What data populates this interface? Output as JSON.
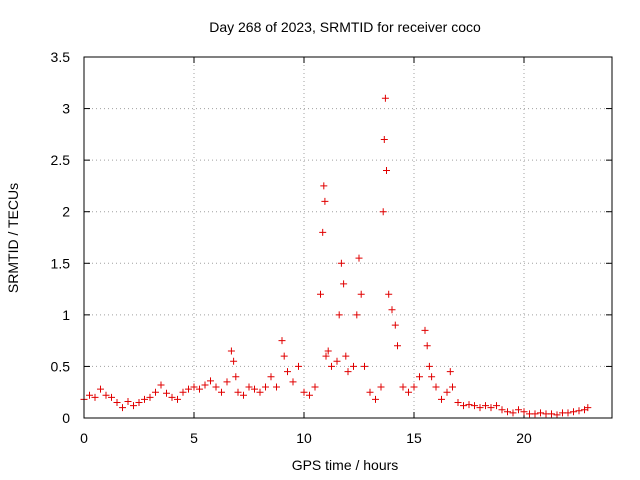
{
  "chart_data": {
    "type": "scatter",
    "title": "Day 268 of 2023, SRMTID for receiver coco",
    "xlabel": "GPS time / hours",
    "ylabel": "SRMTID / TECUs",
    "xlim": [
      0,
      24
    ],
    "ylim": [
      0,
      3.5
    ],
    "xticks": [
      0,
      5,
      10,
      15,
      20
    ],
    "xtick_labels": [
      "0",
      "5",
      "10",
      "15",
      "20"
    ],
    "yticks": [
      0,
      0.5,
      1,
      1.5,
      2,
      2.5,
      3,
      3.5
    ],
    "ytick_labels": [
      "0",
      "0.5",
      "1",
      "1.5",
      "2",
      "2.5",
      "3",
      "3.5"
    ],
    "grid": true,
    "marker": "+",
    "color": "#e00000",
    "series": [
      {
        "name": "SRMTID",
        "x": [
          0.0,
          0.25,
          0.5,
          0.75,
          1.0,
          1.25,
          1.5,
          1.75,
          2.0,
          2.25,
          2.5,
          2.75,
          3.0,
          3.25,
          3.5,
          3.75,
          4.0,
          4.25,
          4.5,
          4.75,
          5.0,
          5.25,
          5.5,
          5.75,
          6.0,
          6.25,
          6.5,
          6.7,
          6.8,
          6.9,
          7.0,
          7.25,
          7.5,
          7.75,
          8.0,
          8.25,
          8.5,
          8.75,
          9.0,
          9.1,
          9.25,
          9.5,
          9.75,
          10.0,
          10.25,
          10.5,
          10.75,
          10.85,
          10.9,
          10.95,
          11.0,
          11.1,
          11.25,
          11.5,
          11.6,
          11.7,
          11.8,
          11.9,
          12.0,
          12.25,
          12.4,
          12.5,
          12.6,
          12.75,
          13.0,
          13.25,
          13.5,
          13.6,
          13.65,
          13.7,
          13.75,
          13.85,
          14.0,
          14.15,
          14.25,
          14.5,
          14.75,
          15.0,
          15.25,
          15.5,
          15.6,
          15.7,
          15.8,
          16.0,
          16.25,
          16.5,
          16.65,
          16.75,
          17.0,
          17.25,
          17.5,
          17.75,
          18.0,
          18.25,
          18.5,
          18.75,
          19.0,
          19.25,
          19.5,
          19.75,
          20.0,
          20.25,
          20.5,
          20.75,
          21.0,
          21.25,
          21.5,
          21.75,
          22.0,
          22.25,
          22.5,
          22.75,
          22.9
        ],
        "y": [
          0.18,
          0.22,
          0.2,
          0.28,
          0.22,
          0.2,
          0.15,
          0.1,
          0.16,
          0.12,
          0.15,
          0.18,
          0.2,
          0.25,
          0.32,
          0.24,
          0.2,
          0.18,
          0.25,
          0.28,
          0.3,
          0.28,
          0.32,
          0.36,
          0.3,
          0.25,
          0.35,
          0.65,
          0.55,
          0.4,
          0.25,
          0.22,
          0.3,
          0.28,
          0.25,
          0.3,
          0.4,
          0.3,
          0.75,
          0.6,
          0.45,
          0.35,
          0.5,
          0.25,
          0.22,
          0.3,
          1.2,
          1.8,
          2.25,
          2.1,
          0.6,
          0.65,
          0.5,
          0.55,
          1.0,
          1.5,
          1.3,
          0.6,
          0.45,
          0.5,
          1.0,
          1.55,
          1.2,
          0.5,
          0.25,
          0.18,
          0.3,
          2.0,
          2.7,
          3.1,
          2.4,
          1.2,
          1.05,
          0.9,
          0.7,
          0.3,
          0.25,
          0.3,
          0.4,
          0.85,
          0.7,
          0.5,
          0.4,
          0.3,
          0.18,
          0.25,
          0.45,
          0.3,
          0.15,
          0.12,
          0.13,
          0.12,
          0.1,
          0.12,
          0.1,
          0.12,
          0.08,
          0.06,
          0.05,
          0.08,
          0.06,
          0.04,
          0.04,
          0.05,
          0.04,
          0.04,
          0.03,
          0.05,
          0.05,
          0.06,
          0.07,
          0.08,
          0.1
        ]
      }
    ]
  }
}
